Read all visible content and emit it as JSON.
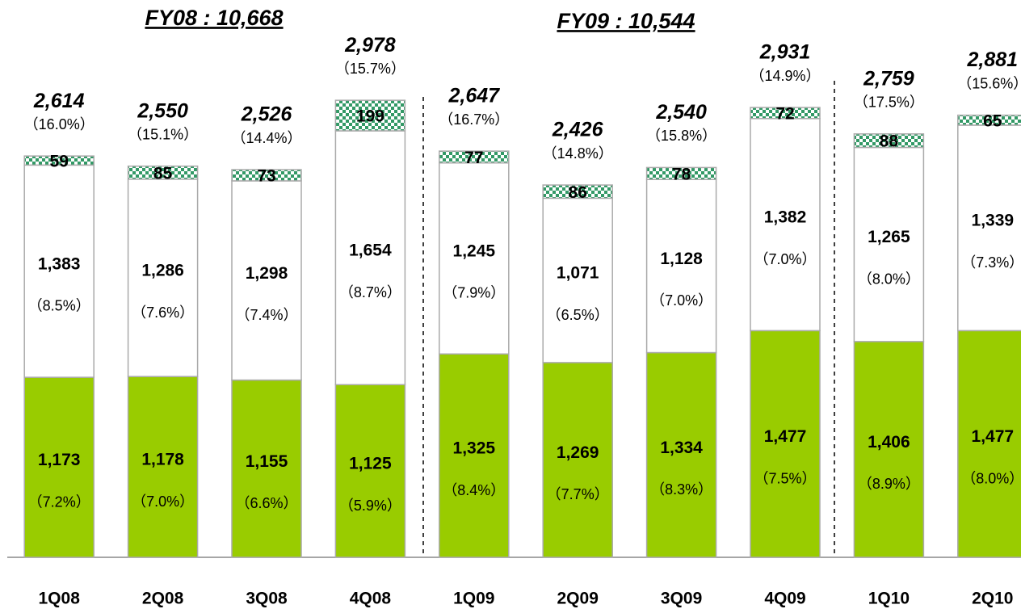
{
  "chart_data": {
    "type": "stacked_bar",
    "groups": [
      {
        "label": "FY08 : 10,668"
      },
      {
        "label": "FY09 : 10,544"
      }
    ],
    "categories": [
      "1Q08",
      "2Q08",
      "3Q08",
      "4Q08",
      "1Q09",
      "2Q09",
      "3Q09",
      "4Q09",
      "1Q10",
      "2Q10"
    ],
    "ylim": [
      0,
      3600
    ],
    "series": [
      {
        "color": "#99cc00",
        "pattern": "solid",
        "values": [
          1173,
          1178,
          1155,
          1125,
          1325,
          1269,
          1334,
          1477,
          1406,
          1477
        ],
        "value_labels": [
          "1,173",
          "1,178",
          "1,155",
          "1,125",
          "1,325",
          "1,269",
          "1,334",
          "1,477",
          "1,406",
          "1,477"
        ],
        "percent_labels": [
          "（7.2%）",
          "（7.0%）",
          "（6.6%）",
          "（5.9%）",
          "（8.4%）",
          "（7.7%）",
          "（8.3%）",
          "（7.5%）",
          "（8.9%）",
          "（8.0%）"
        ]
      },
      {
        "color": "#ffffff",
        "pattern": "solid",
        "values": [
          1383,
          1286,
          1298,
          1654,
          1245,
          1071,
          1128,
          1382,
          1265,
          1339
        ],
        "value_labels": [
          "1,383",
          "1,286",
          "1,298",
          "1,654",
          "1,245",
          "1,071",
          "1,128",
          "1,382",
          "1,265",
          "1,339"
        ],
        "percent_labels": [
          "（8.5%）",
          "（7.6%）",
          "（7.4%）",
          "（8.7%）",
          "（7.9%）",
          "（6.5%）",
          "（7.0%）",
          "（7.0%）",
          "（8.0%）",
          "（7.3%）"
        ]
      },
      {
        "color": "#339966",
        "pattern": "checker",
        "values": [
          59,
          85,
          73,
          199,
          77,
          86,
          78,
          72,
          88,
          65
        ]
      }
    ],
    "totals": [
      2614,
      2550,
      2526,
      2978,
      2647,
      2426,
      2540,
      2931,
      2759,
      2881
    ],
    "total_labels": [
      "2,614",
      "2,550",
      "2,526",
      "2,978",
      "2,647",
      "2,426",
      "2,540",
      "2,931",
      "2,759",
      "2,881"
    ],
    "total_percent_labels": [
      "（16.0%）",
      "（15.1%）",
      "（14.4%）",
      "（15.7%）",
      "（16.7%）",
      "（14.8%）",
      "（15.8%）",
      "（14.9%）",
      "（17.5%）",
      "（15.6%）"
    ]
  }
}
